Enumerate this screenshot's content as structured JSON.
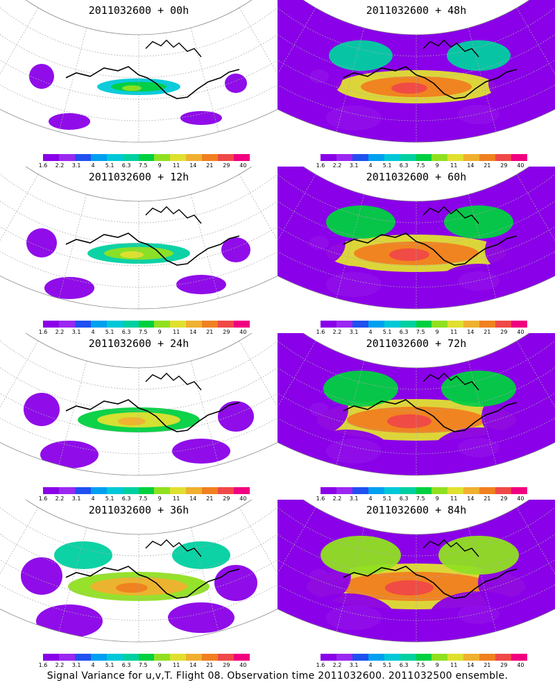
{
  "panels": [
    {
      "title": "2011032600 + 00h",
      "intensity": 0
    },
    {
      "title": "2011032600 + 48h",
      "intensity": 4
    },
    {
      "title": "2011032600 + 12h",
      "intensity": 1
    },
    {
      "title": "2011032600 + 60h",
      "intensity": 5
    },
    {
      "title": "2011032600 + 24h",
      "intensity": 2
    },
    {
      "title": "2011032600 + 72h",
      "intensity": 6
    },
    {
      "title": "2011032600 + 36h",
      "intensity": 3
    },
    {
      "title": "2011032600 + 84h",
      "intensity": 7
    }
  ],
  "colorbar": {
    "labels": [
      "1.6",
      "2.2",
      "3.1",
      "4",
      "5.1",
      "6.3",
      "7.5",
      "9",
      "11",
      "14",
      "21",
      "29",
      "40"
    ],
    "colors": [
      "#8a00e8",
      "#9b28f0",
      "#2050f0",
      "#00a0f0",
      "#00c8d8",
      "#00d0a0",
      "#00d040",
      "#90e020",
      "#e0e030",
      "#f0b030",
      "#f08020",
      "#f04848",
      "#f00080"
    ]
  },
  "caption": "Signal Variance for u,v,T. Flight 08. Observation time 2011032600. 2011032500 ensemble."
}
